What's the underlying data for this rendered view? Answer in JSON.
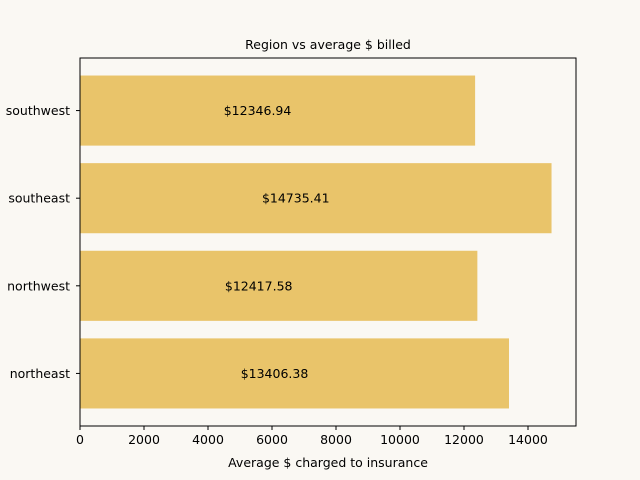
{
  "chart_data": {
    "type": "bar",
    "orientation": "horizontal",
    "title": "Region vs average $ billed",
    "xlabel": "Average $ charged to insurance",
    "ylabel": "",
    "categories": [
      "northeast",
      "northwest",
      "southeast",
      "southwest"
    ],
    "values": [
      13406.38,
      12417.58,
      14735.41,
      12346.94
    ],
    "data_labels": [
      "$13406.38",
      "$12417.58",
      "$14735.41",
      "$12346.94"
    ],
    "xlim": [
      0,
      15500
    ],
    "xticks": [
      0,
      2000,
      4000,
      6000,
      8000,
      10000,
      12000,
      14000
    ],
    "grid": false,
    "bar_color": "#e9c46a",
    "background_color": "#faf8f3"
  }
}
